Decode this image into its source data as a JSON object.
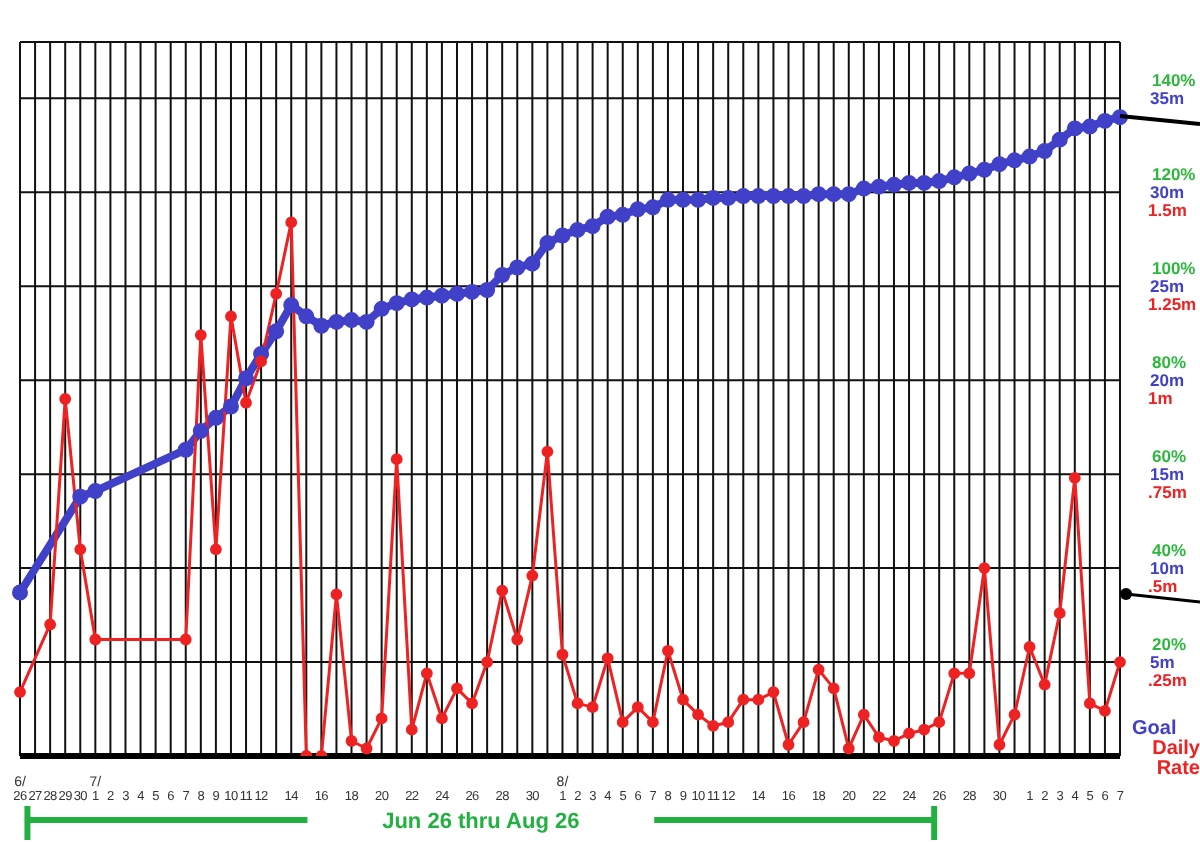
{
  "chart_data": {
    "type": "line",
    "categories": [
      "6/ 26",
      "27",
      "28",
      "29",
      "30",
      "7/ 1",
      "2",
      "3",
      "4",
      "5",
      "6",
      "7",
      "8",
      "9",
      "10",
      "11",
      "12",
      null,
      "14",
      null,
      "16",
      null,
      "18",
      null,
      "20",
      null,
      "22",
      null,
      "24",
      null,
      "26",
      null,
      "28",
      null,
      "30",
      null,
      "8/ 1",
      "2",
      "3",
      "4",
      "5",
      "6",
      "7",
      "8",
      "9",
      "10",
      "11",
      "12",
      null,
      "14",
      null,
      "16",
      null,
      "18",
      null,
      "20",
      null,
      "22",
      null,
      "24",
      null,
      "26",
      null,
      "28",
      null,
      "30",
      null,
      "1",
      "2",
      "3",
      "4",
      "5",
      "6",
      "7"
    ],
    "series": [
      {
        "name": "Goal",
        "color": "#4040c8",
        "axis": "y2",
        "values": [
          8.7,
          null,
          null,
          null,
          13.8,
          14.1,
          null,
          null,
          null,
          null,
          null,
          16.3,
          17.3,
          18.0,
          18.6,
          20.1,
          21.4,
          22.6,
          24.0,
          23.4,
          22.9,
          23.1,
          23.2,
          23.1,
          23.8,
          24.1,
          24.3,
          24.4,
          24.5,
          24.6,
          24.7,
          24.8,
          25.6,
          26.0,
          26.2,
          27.3,
          27.7,
          28.0,
          28.2,
          28.7,
          28.8,
          29.1,
          29.2,
          29.6,
          29.6,
          29.6,
          29.7,
          29.7,
          29.8,
          29.8,
          29.8,
          29.8,
          29.8,
          29.9,
          29.9,
          29.9,
          30.2,
          30.3,
          30.4,
          30.5,
          30.5,
          30.6,
          30.8,
          31.0,
          31.2,
          31.5,
          31.7,
          31.9,
          32.2,
          32.8,
          33.4,
          33.5,
          33.8,
          34.0
        ]
      },
      {
        "name": "Daily Rate",
        "color": "#ee2222",
        "values": [
          0.17,
          null,
          0.35,
          0.95,
          0.55,
          0.31,
          null,
          null,
          null,
          null,
          null,
          0.31,
          1.12,
          0.55,
          1.17,
          0.94,
          1.05,
          1.23,
          1.42,
          0,
          0,
          0.43,
          0.04,
          0.02,
          0.1,
          0.79,
          0.07,
          0.22,
          0.1,
          0.18,
          0.14,
          0.25,
          0.44,
          0.31,
          0.48,
          0.81,
          0.27,
          0.14,
          0.13,
          0.26,
          0.09,
          0.13,
          0.09,
          0.28,
          0.15,
          0.11,
          0.08,
          0.09,
          0.15,
          0.15,
          0.17,
          0.03,
          0.09,
          0.23,
          0.18,
          0.02,
          0.11,
          0.05,
          0.04,
          0.06,
          0.07,
          0.09,
          0.22,
          0.22,
          0.5,
          0.03,
          0.11,
          0.29,
          0.19,
          0.38,
          0.74,
          0.14,
          0.12,
          0.25
        ]
      }
    ],
    "ylim": [
      0,
      1.9
    ],
    "yticks": [
      {
        "value": 0.25,
        "label": ".25m"
      },
      {
        "value": 0.5,
        "label": ".5m"
      },
      {
        "value": 0.75,
        "label": ".75m"
      },
      {
        "value": 1,
        "label": "1m"
      },
      {
        "value": 1.25,
        "label": "1.25m"
      },
      {
        "value": 1.5,
        "label": "1.5m"
      }
    ],
    "y2lim": [
      0,
      38
    ],
    "y2ticks": [
      {
        "value": 5,
        "label": "5m"
      },
      {
        "value": 10,
        "label": "10m"
      },
      {
        "value": 15,
        "label": "15m"
      },
      {
        "value": 20,
        "label": "20m"
      },
      {
        "value": 25,
        "label": "25m"
      },
      {
        "value": 30,
        "label": "30m"
      },
      {
        "value": 35,
        "label": "35m"
      }
    ],
    "y3lim": [
      0,
      152
    ],
    "y3ticks": [
      {
        "value": 20,
        "label": "20%"
      },
      {
        "value": 40,
        "label": "40%"
      },
      {
        "value": 60,
        "label": "60%"
      },
      {
        "value": 80,
        "label": "80%"
      },
      {
        "value": 100,
        "label": "100%"
      },
      {
        "value": 120,
        "label": "120%"
      },
      {
        "value": 140,
        "label": "140%"
      }
    ],
    "grid": true,
    "legend": "bottom right",
    "marker": "circle",
    "annotations": [
      "Jun 26 thru Aug 26"
    ]
  }
}
